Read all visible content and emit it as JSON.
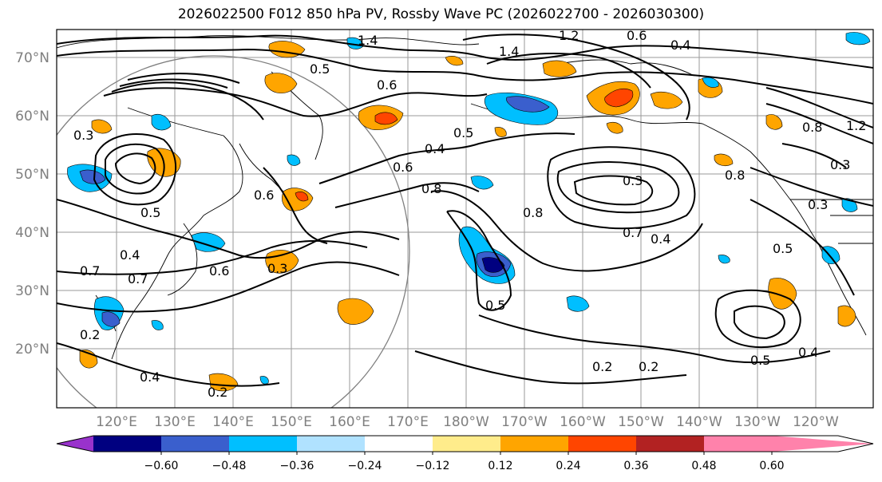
{
  "title": "2026022500 F012 850 hPa PV, Rossby Wave PC (2026022700 - 2026030300)",
  "map": {
    "lat_ticks": [
      "70°N",
      "60°N",
      "50°N",
      "40°N",
      "30°N",
      "20°N"
    ],
    "lon_ticks": [
      "120°E",
      "130°E",
      "140°E",
      "150°E",
      "160°E",
      "170°E",
      "180°W",
      "170°W",
      "160°W",
      "150°W",
      "140°W",
      "130°W",
      "120°W"
    ],
    "contour_labels": [
      "1.4",
      "1.2",
      "0.6",
      "0.4",
      "0.5",
      "0.6",
      "1.4",
      "0.3",
      "0.5",
      "0.4",
      "0.6",
      "0.8",
      "0.3",
      "0.8",
      "0.7",
      "0.4",
      "0.5",
      "0.3",
      "0.7",
      "0.7",
      "0.6",
      "0.5",
      "0.2",
      "0.4",
      "0.2",
      "0.2",
      "0.2",
      "0.5",
      "0.4",
      "0.3",
      "0.8",
      "1.2",
      "0.3",
      "0.5",
      "0.4",
      "0.8",
      "0.6"
    ]
  },
  "colorbar": {
    "ticks": [
      "−0.60",
      "−0.48",
      "−0.36",
      "−0.24",
      "−0.12",
      "0.12",
      "0.24",
      "0.36",
      "0.48",
      "0.60"
    ],
    "colors": [
      "#9932cc",
      "#000080",
      "#3a5fcd",
      "#00bfff",
      "#b0e2ff",
      "#ffffff",
      "#ffec8b",
      "#ffa500",
      "#ff4500",
      "#b22222",
      "#ff82ab"
    ]
  }
}
